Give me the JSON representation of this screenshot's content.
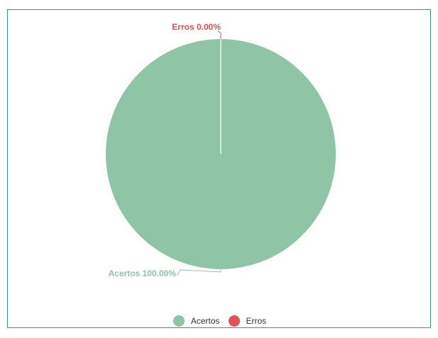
{
  "chart_data": {
    "type": "pie",
    "slices": [
      {
        "name": "Acertos",
        "value": 100.0,
        "label": "Acertos 100.00%",
        "color": "#8fc4a7"
      },
      {
        "name": "Erros",
        "value": 0.0,
        "label": "Erros 0.00%",
        "color": "#e05256"
      }
    ],
    "legend": {
      "position": "bottom",
      "items": [
        {
          "label": "Acertos",
          "color": "#8fc4a7"
        },
        {
          "label": "Erros",
          "color": "#e05256"
        }
      ]
    }
  },
  "frame": {
    "border_color": "#4a8a8c"
  }
}
